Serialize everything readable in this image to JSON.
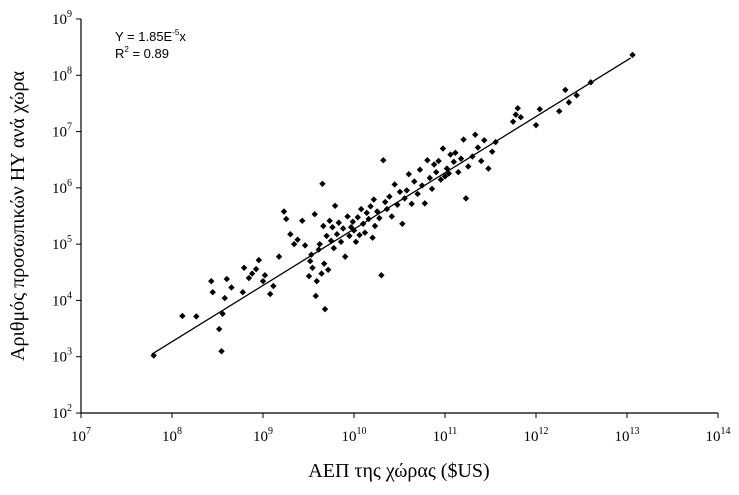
{
  "chart_data": {
    "type": "scatter",
    "xlabel": "ΑΕΠ της χώρας ($US)",
    "ylabel": "Αριθμός προσωπικών ΗΥ ανά χώρα",
    "x_scale": "log",
    "y_scale": "log",
    "xlim": [
      10000000,
      100000000000000
    ],
    "ylim": [
      100,
      1000000000
    ],
    "x_tick_base": "10",
    "x_tick_exponents": [
      "7",
      "8",
      "9",
      "10",
      "11",
      "12",
      "13",
      "14"
    ],
    "y_tick_base": "10",
    "y_tick_exponents": [
      "2",
      "3",
      "4",
      "5",
      "6",
      "7",
      "8",
      "9"
    ],
    "annotation": {
      "equation_prefix": "Y = 1.85E",
      "equation_sup": "-5",
      "equation_suffix": "x",
      "r2_prefix": "R",
      "r2_sup": "2",
      "r2_suffix": " = 0.89"
    },
    "fit_line": {
      "coefficient": 1.85e-05,
      "x_start": 60000000,
      "x_end": 11000000000000
    },
    "grid": false,
    "marker": "◆",
    "series": [
      {
        "points": [
          [
            63000000,
            1050
          ],
          [
            130000000,
            5300
          ],
          [
            185000000,
            5200
          ],
          [
            270000000,
            22000
          ],
          [
            280000000,
            14000
          ],
          [
            330000000,
            3100
          ],
          [
            350000000,
            1250
          ],
          [
            360000000,
            5800
          ],
          [
            380000000,
            11000
          ],
          [
            400000000,
            24000
          ],
          [
            450000000,
            17000
          ],
          [
            600000000,
            14000
          ],
          [
            620000000,
            38000
          ],
          [
            700000000,
            25000
          ],
          [
            760000000,
            30000
          ],
          [
            840000000,
            36000
          ],
          [
            900000000,
            52000
          ],
          [
            1000000000,
            22000
          ],
          [
            1050000000,
            28000
          ],
          [
            1200000000,
            13000
          ],
          [
            1300000000,
            18000
          ],
          [
            1500000000,
            60000
          ],
          [
            1700000000,
            380000
          ],
          [
            1800000000,
            280000
          ],
          [
            2000000000,
            150000
          ],
          [
            2200000000,
            100000
          ],
          [
            2400000000,
            120000
          ],
          [
            2700000000,
            260000
          ],
          [
            2900000000,
            95000
          ],
          [
            3200000000,
            27000
          ],
          [
            3300000000,
            50000
          ],
          [
            3400000000,
            65000
          ],
          [
            3500000000,
            38000
          ],
          [
            3700000000,
            340000
          ],
          [
            3800000000,
            12000
          ],
          [
            3900000000,
            22000
          ],
          [
            4100000000,
            80000
          ],
          [
            4200000000,
            100000
          ],
          [
            4400000000,
            30000
          ],
          [
            4500000000,
            1180000
          ],
          [
            4600000000,
            210000
          ],
          [
            4700000000,
            45000
          ],
          [
            4800000000,
            7000
          ],
          [
            5000000000,
            140000
          ],
          [
            5200000000,
            35000
          ],
          [
            5400000000,
            260000
          ],
          [
            5600000000,
            115000
          ],
          [
            5800000000,
            200000
          ],
          [
            6000000000,
            85000
          ],
          [
            6200000000,
            480000
          ],
          [
            6500000000,
            150000
          ],
          [
            6800000000,
            240000
          ],
          [
            7200000000,
            110000
          ],
          [
            7600000000,
            190000
          ],
          [
            8000000000,
            60000
          ],
          [
            8500000000,
            310000
          ],
          [
            8900000000,
            140000
          ],
          [
            9300000000,
            200000
          ],
          [
            9700000000,
            250000
          ],
          [
            10000000000,
            175000
          ],
          [
            10500000000,
            110000
          ],
          [
            11000000000,
            300000
          ],
          [
            11500000000,
            145000
          ],
          [
            12000000000,
            420000
          ],
          [
            12600000000,
            230000
          ],
          [
            13200000000,
            160000
          ],
          [
            13800000000,
            360000
          ],
          [
            14500000000,
            280000
          ],
          [
            15200000000,
            470000
          ],
          [
            16000000000,
            130000
          ],
          [
            16500000000,
            620000
          ],
          [
            17000000000,
            210000
          ],
          [
            18000000000,
            380000
          ],
          [
            19000000000,
            290000
          ],
          [
            20000000000,
            28000
          ],
          [
            21000000000,
            3100000
          ],
          [
            22000000000,
            560000
          ],
          [
            23000000000,
            420000
          ],
          [
            24500000000,
            700000
          ],
          [
            26000000000,
            310000
          ],
          [
            28000000000,
            1150000
          ],
          [
            30000000000,
            500000
          ],
          [
            32000000000,
            850000
          ],
          [
            34000000000,
            230000
          ],
          [
            36000000000,
            650000
          ],
          [
            38000000000,
            900000
          ],
          [
            40000000000,
            1750000
          ],
          [
            43000000000,
            520000
          ],
          [
            46000000000,
            1300000
          ],
          [
            50000000000,
            780000
          ],
          [
            53000000000,
            2100000
          ],
          [
            56000000000,
            1100000
          ],
          [
            60000000000,
            530000
          ],
          [
            64000000000,
            3100000
          ],
          [
            68000000000,
            1500000
          ],
          [
            72000000000,
            960000
          ],
          [
            76000000000,
            2600000
          ],
          [
            80000000000,
            1900000
          ],
          [
            85000000000,
            3000000
          ],
          [
            90000000000,
            1400000
          ],
          [
            95000000000,
            5000000
          ],
          [
            100000000000,
            1600000
          ],
          [
            105000000000,
            2200000
          ],
          [
            110000000000,
            1800000
          ],
          [
            115000000000,
            3900000
          ],
          [
            125000000000,
            2900000
          ],
          [
            130000000000,
            4200000
          ],
          [
            140000000000,
            1900000
          ],
          [
            150000000000,
            3300000
          ],
          [
            160000000000,
            7200000
          ],
          [
            170000000000,
            650000
          ],
          [
            180000000000,
            2400000
          ],
          [
            200000000000,
            3600000
          ],
          [
            215000000000,
            8800000
          ],
          [
            230000000000,
            5200000
          ],
          [
            250000000000,
            3000000
          ],
          [
            270000000000,
            7000000
          ],
          [
            300000000000,
            2200000
          ],
          [
            330000000000,
            4400000
          ],
          [
            360000000000,
            6500000
          ],
          [
            560000000000,
            15000000
          ],
          [
            600000000000,
            20000000
          ],
          [
            630000000000,
            26000000
          ],
          [
            680000000000,
            18000000
          ],
          [
            1000000000000,
            13000000
          ],
          [
            1100000000000,
            25000000
          ],
          [
            1800000000000,
            23000000
          ],
          [
            2100000000000,
            55000000
          ],
          [
            2300000000000,
            33000000
          ],
          [
            2800000000000,
            44000000
          ],
          [
            4000000000000,
            75000000
          ],
          [
            11500000000000,
            230000000
          ]
        ]
      }
    ]
  }
}
